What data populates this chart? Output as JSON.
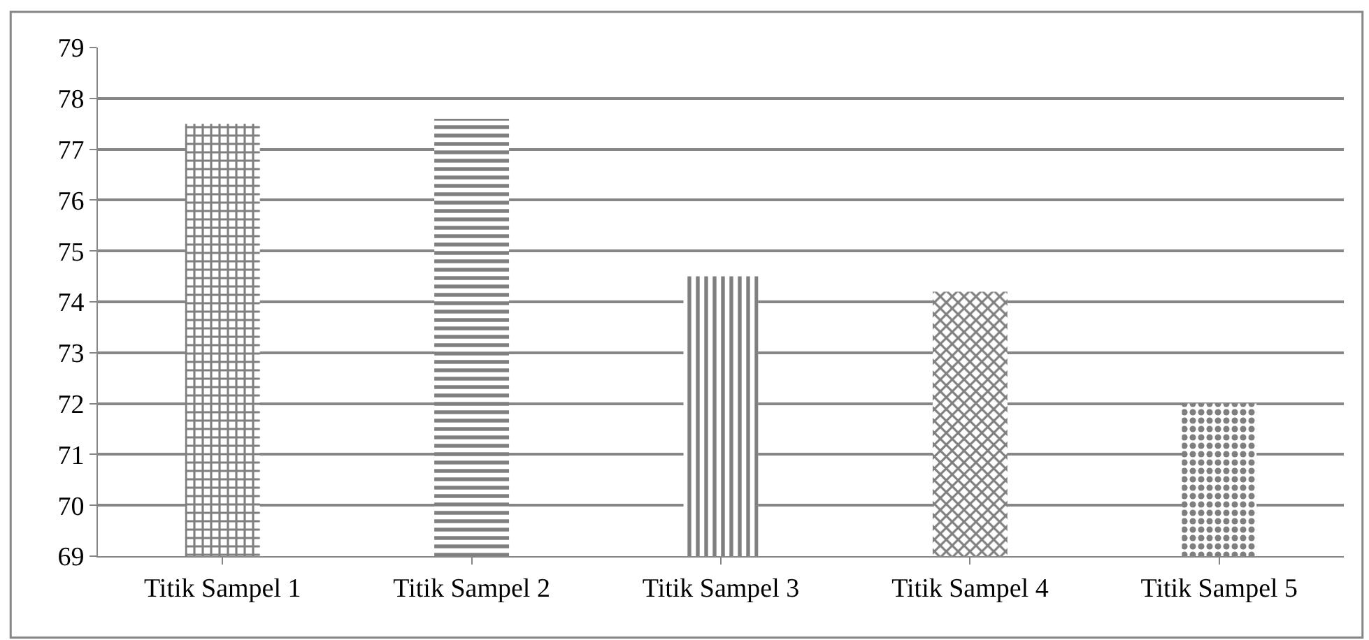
{
  "chart_data": {
    "type": "bar",
    "categories": [
      "Titik Sampel 1",
      "Titik Sampel 2",
      "Titik Sampel 3",
      "Titik Sampel 4",
      "Titik Sampel 5"
    ],
    "values": [
      77.5,
      77.6,
      74.5,
      74.2,
      72.0
    ],
    "colors": [
      "#000000",
      "#000000",
      "#000000",
      "#000000",
      "#000000"
    ],
    "ylim": [
      69,
      79
    ],
    "yticks": [
      69,
      70,
      71,
      72,
      73,
      74,
      75,
      76,
      77,
      78,
      79
    ],
    "grid": "y",
    "legend": false
  }
}
